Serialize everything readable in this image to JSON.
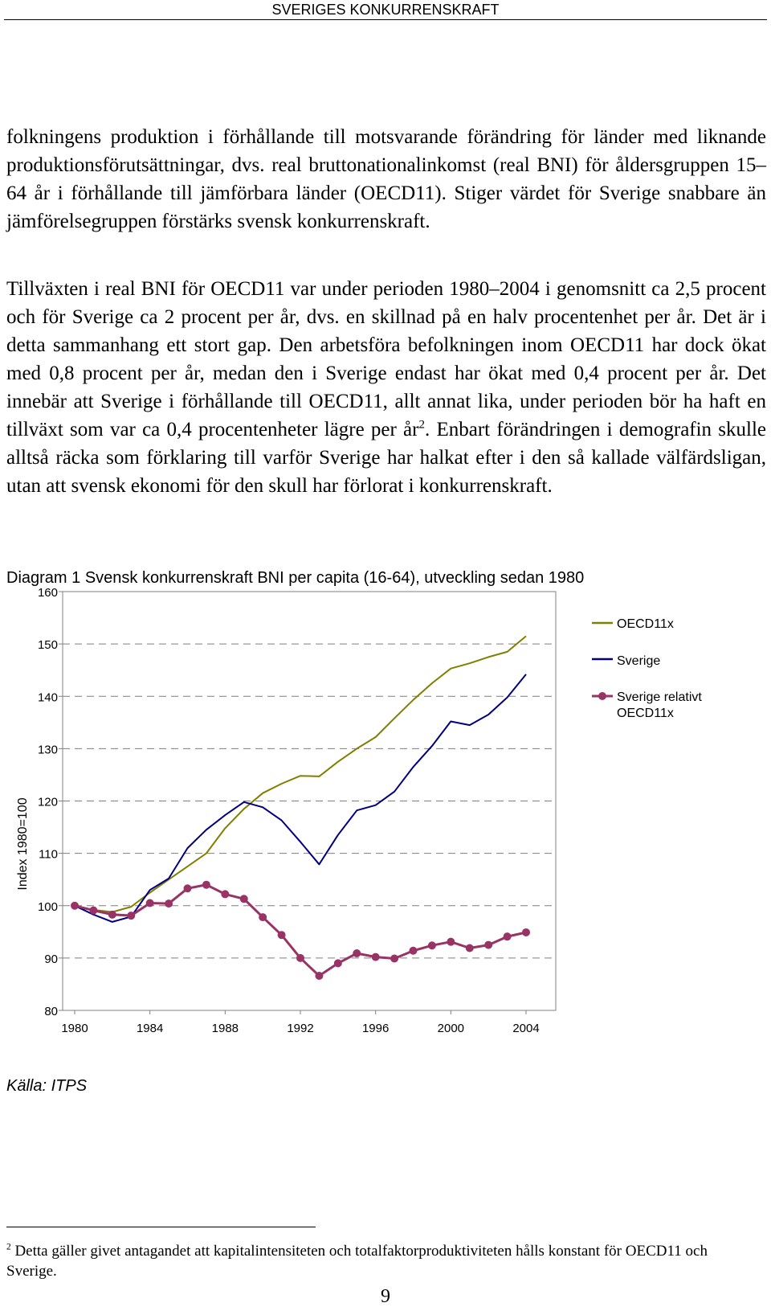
{
  "header": {
    "title": "SVERIGES KONKURRENSKRAFT"
  },
  "paragraphs": {
    "p1": "folkningens produktion i förhållande till motsvarande förändring för länder med liknande produktionsförutsättningar, dvs. real bruttonationalinkomst (real BNI) för åldersgruppen 15–64 år i förhållande till jämförbara länder (OECD11). Stiger värdet för Sverige snabbare än jämförelsegruppen förstärks svensk konkurrenskraft.",
    "p2_before_ref": "Tillväxten i real BNI för OECD11 var under perioden 1980–2004 i genomsnitt ca 2,5 procent och för Sverige ca 2 procent per år, dvs. en skillnad på en halv procentenhet per år. Det är i detta sammanhang ett stort gap. Den arbetsföra befolkningen inom OECD11 har dock ökat med 0,8 procent per år, medan den i Sverige endast har ökat med 0,4 procent per år. Det innebär att Sverige i förhållande till OECD11, allt annat lika, under perioden bör ha haft en tillväxt som var ca 0,4 procentenheter lägre per år",
    "p2_ref": "2",
    "p2_after_ref": ". Enbart förändringen i demografin skulle alltså räcka som förklaring till varför Sverige har halkat efter i den så kallade välfärdsligan, utan att svensk ekonomi för den skull har förlorat i konkurrenskraft."
  },
  "source_note": "Källa: ITPS",
  "footnote": {
    "number": "2",
    "text": "Detta gäller givet antagandet att kapitalintensiteten och totalfaktorproduktiviteten hålls konstant för OECD11 och Sverige."
  },
  "page_number": "9",
  "chart_data": {
    "type": "line",
    "title": "Diagram 1 Svensk konkurrenskraft BNI per capita (16-64), utveckling sedan 1980",
    "xlabel": "",
    "ylabel": "Index 1980=100",
    "ylim": [
      80,
      160
    ],
    "xlim": [
      1980,
      2004
    ],
    "yticks": [
      "80",
      "90",
      "100",
      "110",
      "120",
      "130",
      "140",
      "150",
      "160"
    ],
    "xticks": [
      "1980",
      "1984",
      "1988",
      "1992",
      "1996",
      "2000",
      "2004"
    ],
    "grid": "horizontal-dashed",
    "legend_position": "right",
    "x": [
      1980,
      1981,
      1982,
      1983,
      1984,
      1985,
      1986,
      1987,
      1988,
      1989,
      1990,
      1991,
      1992,
      1993,
      1994,
      1995,
      1996,
      1997,
      1998,
      1999,
      2000,
      2001,
      2002,
      2003,
      2004
    ],
    "series": [
      {
        "name": "OECD11x",
        "color": "#808000",
        "marker": false,
        "values": [
          100,
          99.2,
          98.8,
          99.8,
          102.5,
          105,
          107.5,
          110,
          114.8,
          118.5,
          121.5,
          123.3,
          124.8,
          124.7,
          127.5,
          130,
          132.2,
          135.8,
          139.3,
          142.5,
          145.3,
          146.3,
          147.5,
          148.5,
          151.5
        ]
      },
      {
        "name": "Sverige",
        "color": "#000080",
        "marker": false,
        "values": [
          100,
          98.3,
          96.9,
          97.9,
          103,
          105.2,
          111,
          114.5,
          117.3,
          119.8,
          118.8,
          116.3,
          112.2,
          107.9,
          113.5,
          118.2,
          119.2,
          121.8,
          126.5,
          130.5,
          135.2,
          134.5,
          136.5,
          139.8,
          144.2
        ]
      },
      {
        "name": "Sverige relativt OECD11x",
        "color": "#993366",
        "marker": true,
        "values": [
          100,
          99.1,
          98.3,
          98.1,
          100.5,
          100.4,
          103.3,
          104,
          102.2,
          101.3,
          97.8,
          94.4,
          90,
          86.6,
          89,
          90.9,
          90.2,
          89.9,
          91.4,
          92.4,
          93.1,
          91.9,
          92.5,
          94.1,
          94.9
        ]
      }
    ],
    "legend_labels": {
      "oecd": "OECD11x",
      "sverige": "Sverige",
      "relativt_line1": "Sverige relativt",
      "relativt_line2": "OECD11x"
    }
  }
}
